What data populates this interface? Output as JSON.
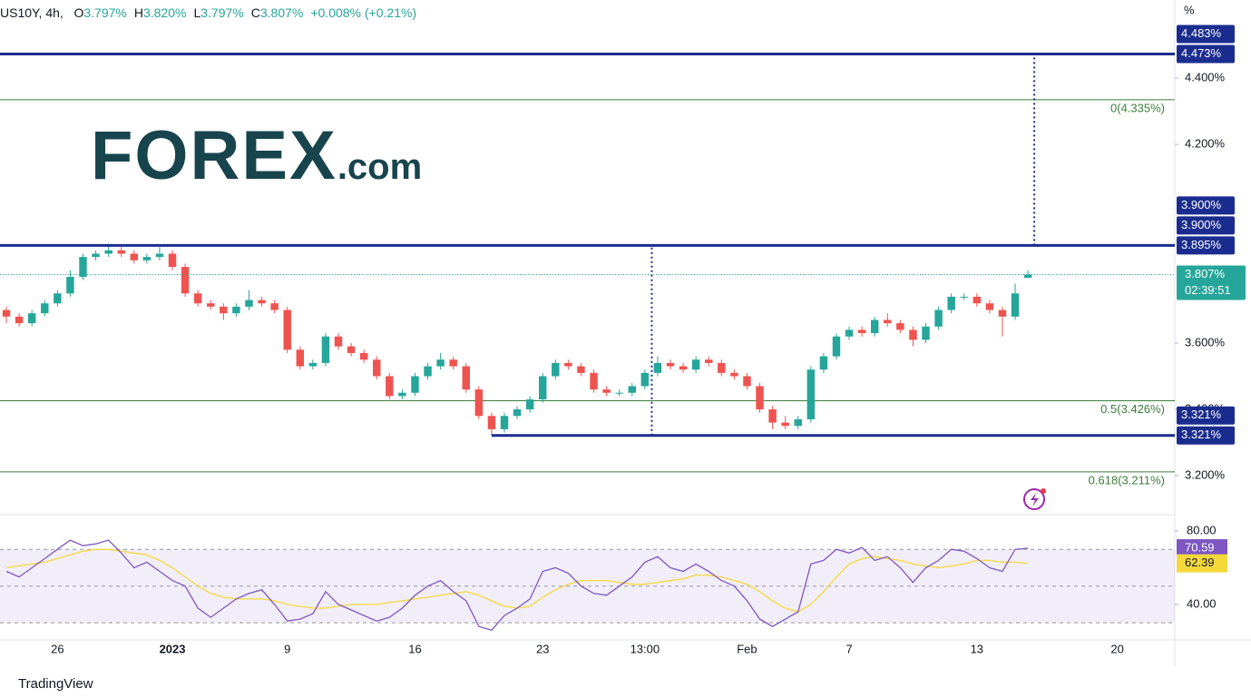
{
  "chart_data": {
    "type": "candlestick",
    "title": "US10Y, 4h,",
    "ohlc_legend": [
      {
        "key": "O",
        "value": "3.797%"
      },
      {
        "key": "H",
        "value": "3.820%"
      },
      {
        "key": "L",
        "value": "3.797%"
      },
      {
        "key": "C",
        "value": "3.807%"
      }
    ],
    "change": "+0.008% (+0.21%)",
    "logo": {
      "brand": "FOREX",
      "suffix": ".com"
    },
    "footer": "TradingView",
    "price_axis_unit": "%",
    "up_color": "#26a69a",
    "down_color": "#ef5350",
    "categories": [
      null,
      null,
      null,
      null,
      "26",
      null,
      null,
      null,
      null,
      null,
      null,
      null,
      null,
      "2023",
      null,
      null,
      null,
      null,
      null,
      null,
      null,
      null,
      "9",
      null,
      null,
      null,
      null,
      null,
      null,
      null,
      null,
      null,
      "16",
      null,
      null,
      null,
      null,
      null,
      null,
      null,
      null,
      null,
      "23",
      null,
      null,
      null,
      null,
      null,
      null,
      null,
      "13:00",
      null,
      null,
      null,
      null,
      null,
      null,
      null,
      "Feb",
      null,
      null,
      null,
      null,
      null,
      null,
      null,
      "7",
      null,
      null,
      null,
      null,
      null,
      null,
      null,
      null,
      null,
      "13",
      null,
      null,
      null,
      null,
      null,
      null,
      null,
      null,
      null,
      null,
      "20",
      null,
      null,
      null,
      null
    ],
    "candles": [
      [
        3.7,
        3.71,
        3.66,
        3.68
      ],
      [
        3.68,
        3.69,
        3.65,
        3.66
      ],
      [
        3.66,
        3.7,
        3.65,
        3.69
      ],
      [
        3.69,
        3.73,
        3.68,
        3.72
      ],
      [
        3.72,
        3.76,
        3.71,
        3.75
      ],
      [
        3.75,
        3.82,
        3.74,
        3.8
      ],
      [
        3.8,
        3.87,
        3.79,
        3.86
      ],
      [
        3.86,
        3.88,
        3.85,
        3.87
      ],
      [
        3.87,
        3.9,
        3.86,
        3.88
      ],
      [
        3.88,
        3.89,
        3.86,
        3.87
      ],
      [
        3.87,
        3.88,
        3.84,
        3.85
      ],
      [
        3.85,
        3.87,
        3.84,
        3.86
      ],
      [
        3.86,
        3.89,
        3.85,
        3.87
      ],
      [
        3.87,
        3.88,
        3.82,
        3.83
      ],
      [
        3.83,
        3.84,
        3.74,
        3.75
      ],
      [
        3.75,
        3.76,
        3.71,
        3.72
      ],
      [
        3.72,
        3.73,
        3.7,
        3.71
      ],
      [
        3.71,
        3.72,
        3.67,
        3.69
      ],
      [
        3.69,
        3.72,
        3.68,
        3.71
      ],
      [
        3.71,
        3.76,
        3.7,
        3.73
      ],
      [
        3.73,
        3.74,
        3.71,
        3.72
      ],
      [
        3.72,
        3.73,
        3.69,
        3.7
      ],
      [
        3.7,
        3.71,
        3.57,
        3.58
      ],
      [
        3.58,
        3.59,
        3.52,
        3.53
      ],
      [
        3.53,
        3.55,
        3.52,
        3.54
      ],
      [
        3.54,
        3.63,
        3.53,
        3.62
      ],
      [
        3.62,
        3.63,
        3.58,
        3.59
      ],
      [
        3.59,
        3.6,
        3.56,
        3.57
      ],
      [
        3.57,
        3.58,
        3.54,
        3.55
      ],
      [
        3.55,
        3.56,
        3.49,
        3.5
      ],
      [
        3.5,
        3.51,
        3.43,
        3.44
      ],
      [
        3.44,
        3.46,
        3.43,
        3.45
      ],
      [
        3.45,
        3.51,
        3.44,
        3.5
      ],
      [
        3.5,
        3.54,
        3.49,
        3.53
      ],
      [
        3.53,
        3.57,
        3.52,
        3.55
      ],
      [
        3.55,
        3.56,
        3.52,
        3.53
      ],
      [
        3.53,
        3.54,
        3.45,
        3.46
      ],
      [
        3.46,
        3.47,
        3.37,
        3.38
      ],
      [
        3.38,
        3.39,
        3.32,
        3.34
      ],
      [
        3.34,
        3.39,
        3.33,
        3.38
      ],
      [
        3.38,
        3.41,
        3.37,
        3.4
      ],
      [
        3.4,
        3.44,
        3.39,
        3.43
      ],
      [
        3.43,
        3.51,
        3.42,
        3.5
      ],
      [
        3.5,
        3.55,
        3.49,
        3.54
      ],
      [
        3.54,
        3.55,
        3.52,
        3.53
      ],
      [
        3.53,
        3.54,
        3.5,
        3.51
      ],
      [
        3.51,
        3.52,
        3.45,
        3.46
      ],
      [
        3.46,
        3.47,
        3.44,
        3.45
      ],
      [
        3.45,
        3.46,
        3.44,
        3.45
      ],
      [
        3.45,
        3.48,
        3.44,
        3.47
      ],
      [
        3.47,
        3.52,
        3.46,
        3.51
      ],
      [
        3.51,
        3.56,
        3.5,
        3.54
      ],
      [
        3.54,
        3.55,
        3.52,
        3.53
      ],
      [
        3.53,
        3.54,
        3.51,
        3.52
      ],
      [
        3.52,
        3.56,
        3.51,
        3.55
      ],
      [
        3.55,
        3.56,
        3.53,
        3.54
      ],
      [
        3.54,
        3.55,
        3.5,
        3.51
      ],
      [
        3.51,
        3.52,
        3.49,
        3.5
      ],
      [
        3.5,
        3.51,
        3.46,
        3.47
      ],
      [
        3.47,
        3.48,
        3.39,
        3.4
      ],
      [
        3.4,
        3.41,
        3.34,
        3.36
      ],
      [
        3.36,
        3.38,
        3.34,
        3.35
      ],
      [
        3.35,
        3.38,
        3.34,
        3.37
      ],
      [
        3.37,
        3.53,
        3.36,
        3.52
      ],
      [
        3.52,
        3.57,
        3.51,
        3.56
      ],
      [
        3.56,
        3.63,
        3.55,
        3.62
      ],
      [
        3.62,
        3.65,
        3.61,
        3.64
      ],
      [
        3.64,
        3.65,
        3.62,
        3.63
      ],
      [
        3.63,
        3.68,
        3.62,
        3.67
      ],
      [
        3.67,
        3.69,
        3.65,
        3.66
      ],
      [
        3.66,
        3.67,
        3.63,
        3.64
      ],
      [
        3.64,
        3.65,
        3.59,
        3.61
      ],
      [
        3.61,
        3.66,
        3.6,
        3.65
      ],
      [
        3.65,
        3.71,
        3.64,
        3.7
      ],
      [
        3.7,
        3.75,
        3.69,
        3.74
      ],
      [
        3.74,
        3.75,
        3.73,
        3.74
      ],
      [
        3.74,
        3.75,
        3.71,
        3.72
      ],
      [
        3.72,
        3.73,
        3.69,
        3.7
      ],
      [
        3.7,
        3.71,
        3.62,
        3.68
      ],
      [
        3.68,
        3.78,
        3.67,
        3.75
      ],
      [
        3.797,
        3.82,
        3.797,
        3.807
      ],
      null,
      null,
      null,
      null,
      null,
      null,
      null,
      null,
      null,
      null,
      null
    ],
    "ylim": [
      3.082,
      4.636
    ],
    "yticks": [
      {
        "value": 4.4,
        "label": "4.400%"
      },
      {
        "value": 4.2,
        "label": "4.200%"
      },
      {
        "value": 3.6,
        "label": "3.600%"
      },
      {
        "value": 3.4,
        "label": "3.400%"
      },
      {
        "value": 3.2,
        "label": "3.200%"
      }
    ],
    "levels": [
      {
        "value": 4.473,
        "label": "4.473%"
      },
      {
        "value": 3.895,
        "label": "3.895%"
      },
      {
        "value": 3.321,
        "label": "3.321%"
      }
    ],
    "level_color": "#1a2d8f",
    "axis_labels": [
      {
        "value": 4.483,
        "label": "4.483%"
      },
      {
        "value": 4.473,
        "label": "4.473%"
      },
      {
        "value": 3.9,
        "label": "3.900%"
      },
      {
        "value": 3.9,
        "label": "3.900%"
      },
      {
        "value": 3.895,
        "label": "3.895%"
      },
      {
        "value": 3.321,
        "label": "3.321%"
      },
      {
        "value": 3.321,
        "label": "3.321%"
      }
    ],
    "fib_levels": [
      {
        "value": 4.335,
        "label": "0(4.335%)"
      },
      {
        "value": 3.426,
        "label": "0.5(3.426%)"
      },
      {
        "value": 3.211,
        "label": "0.618(3.211%)"
      }
    ],
    "fib_color": "#3b7d3b",
    "last_price": {
      "value": 3.807,
      "label": "3.807%",
      "countdown": "02:39:51",
      "color": "#26a69a"
    },
    "rsi": {
      "ylim": [
        20.7,
        88.9
      ],
      "yticks": [
        {
          "value": 80,
          "label": "80.00"
        },
        {
          "value": 40,
          "label": "40.00"
        }
      ],
      "levels": [
        70,
        50,
        30
      ],
      "series": [
        {
          "color": "#7e57c2",
          "values": [
            58,
            55,
            60,
            65,
            70,
            75,
            72,
            73,
            75,
            68,
            60,
            63,
            58,
            53,
            50,
            38,
            33,
            38,
            43,
            46,
            48,
            40,
            31,
            32,
            35,
            47,
            40,
            37,
            34,
            31,
            33,
            38,
            45,
            50,
            53,
            47,
            42,
            28,
            26,
            34,
            38,
            43,
            58,
            60,
            57,
            50,
            46,
            45,
            50,
            55,
            63,
            66,
            60,
            58,
            62,
            58,
            53,
            50,
            42,
            32,
            28,
            32,
            36,
            62,
            64,
            70,
            68,
            71,
            64,
            66,
            60,
            52,
            60,
            64,
            70,
            69,
            65,
            60,
            58,
            70,
            70.59,
            null,
            null,
            null,
            null,
            null,
            null,
            null,
            null,
            null,
            null,
            null
          ]
        },
        {
          "color": "#f5d83c",
          "values": [
            60,
            61,
            62,
            63,
            65,
            67,
            69,
            70,
            70,
            69,
            68,
            67,
            64,
            60,
            55,
            50,
            46,
            44,
            43,
            43,
            43,
            42,
            40,
            39,
            38,
            38,
            39,
            40,
            40,
            40,
            41,
            42,
            43,
            44,
            45,
            46,
            47,
            45,
            42,
            39,
            38,
            39,
            44,
            48,
            51,
            53,
            53,
            53,
            52,
            51,
            51,
            52,
            53,
            54,
            56,
            56,
            55,
            53,
            51,
            47,
            42,
            38,
            36,
            40,
            47,
            55,
            62,
            65,
            66,
            65,
            64,
            62,
            61,
            60,
            61,
            62,
            64,
            64,
            63,
            63,
            62.39,
            null,
            null,
            null,
            null,
            null,
            null,
            null,
            null,
            null,
            null,
            null
          ]
        }
      ]
    }
  }
}
